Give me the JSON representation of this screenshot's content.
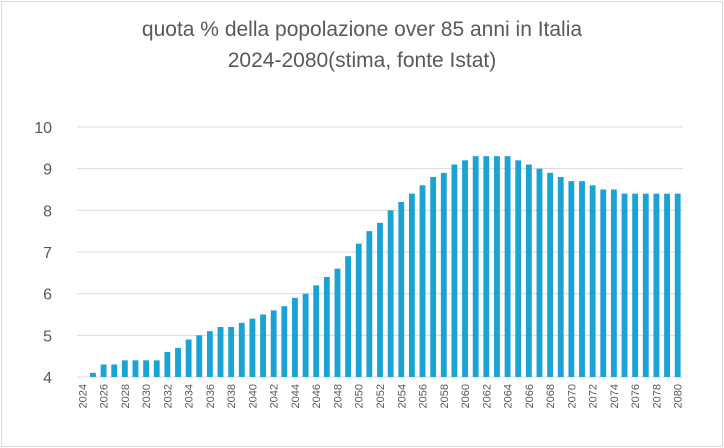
{
  "chart_data": {
    "type": "bar",
    "title": "quota % della popolazione over 85 anni in Italia",
    "subtitle": "2024-2080(stima, fonte Istat)",
    "xlabel": "",
    "ylabel": "",
    "ylim": [
      4,
      10
    ],
    "yticks": [
      "4",
      "5",
      "6",
      "7",
      "8",
      "9",
      "10"
    ],
    "grid": true,
    "legend": "none",
    "bar_color": "#1aa3d3",
    "grid_color": "#d9d9d9",
    "categories": [
      "2024",
      "2025",
      "2026",
      "2027",
      "2028",
      "2029",
      "2030",
      "2031",
      "2032",
      "2033",
      "2034",
      "2035",
      "2036",
      "2037",
      "2038",
      "2039",
      "2040",
      "2041",
      "2042",
      "2043",
      "2044",
      "2045",
      "2046",
      "2047",
      "2048",
      "2049",
      "2050",
      "2051",
      "2052",
      "2053",
      "2054",
      "2055",
      "2056",
      "2057",
      "2058",
      "2059",
      "2060",
      "2061",
      "2062",
      "2063",
      "2064",
      "2065",
      "2066",
      "2067",
      "2068",
      "2069",
      "2070",
      "2071",
      "2072",
      "2073",
      "2074",
      "2075",
      "2076",
      "2077",
      "2078",
      "2079",
      "2080"
    ],
    "xtick_labels": [
      "2024",
      "2026",
      "2028",
      "2030",
      "2032",
      "2034",
      "2036",
      "2038",
      "2040",
      "2042",
      "2044",
      "2046",
      "2048",
      "2050",
      "2052",
      "2054",
      "2056",
      "2058",
      "2060",
      "2062",
      "2064",
      "2066",
      "2068",
      "2070",
      "2072",
      "2074",
      "2076",
      "2078",
      "2080"
    ],
    "values": [
      4.0,
      4.1,
      4.3,
      4.3,
      4.4,
      4.4,
      4.4,
      4.4,
      4.6,
      4.7,
      4.9,
      5.0,
      5.1,
      5.2,
      5.2,
      5.3,
      5.4,
      5.5,
      5.6,
      5.7,
      5.9,
      6.0,
      6.2,
      6.4,
      6.6,
      6.9,
      7.2,
      7.5,
      7.7,
      8.0,
      8.2,
      8.4,
      8.6,
      8.8,
      8.9,
      9.1,
      9.2,
      9.3,
      9.3,
      9.3,
      9.3,
      9.2,
      9.1,
      9.0,
      8.9,
      8.8,
      8.7,
      8.7,
      8.6,
      8.5,
      8.5,
      8.4,
      8.4,
      8.4,
      8.4,
      8.4,
      8.4
    ]
  }
}
